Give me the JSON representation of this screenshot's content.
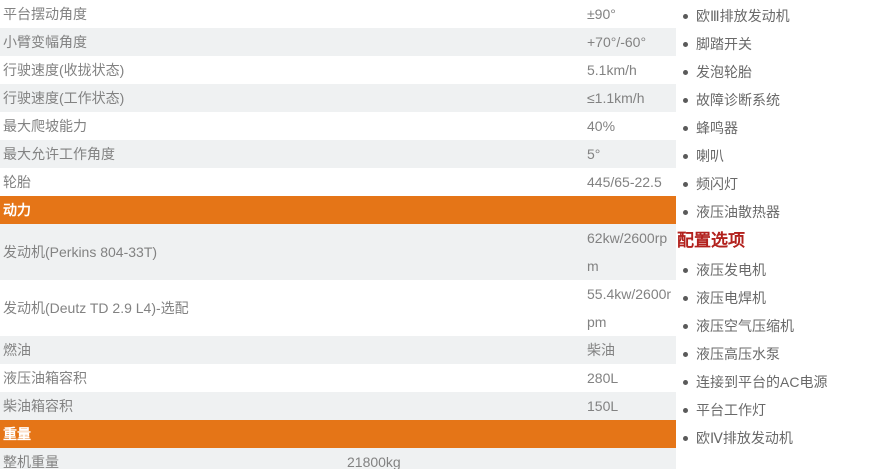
{
  "spec_table": {
    "sections": [
      {
        "header": null,
        "rows": [
          {
            "label": "平台摆动角度",
            "value": "±90°"
          },
          {
            "label": "小臂变幅角度",
            "value": "+70°/-60°"
          },
          {
            "label": "行驶速度(收拢状态)",
            "value": "5.1km/h"
          },
          {
            "label": "行驶速度(工作状态)",
            "value": "≤1.1km/h"
          },
          {
            "label": "最大爬坡能力",
            "value": "40%"
          },
          {
            "label": "最大允许工作角度",
            "value": "5°"
          },
          {
            "label": "轮胎",
            "value": "445/65-22.5"
          }
        ]
      },
      {
        "header": "动力",
        "rows": [
          {
            "label": "发动机(Perkins 804-33T)",
            "value": "62kw/2600rpm"
          },
          {
            "label": "发动机(Deutz TD 2.9 L4)-选配",
            "value": "55.4kw/2600rpm"
          },
          {
            "label": "燃油",
            "value": "柴油"
          },
          {
            "label": "液压油箱容积",
            "value": "280L"
          },
          {
            "label": "柴油箱容积",
            "value": "150L"
          }
        ]
      },
      {
        "header": "重量",
        "rows": [
          {
            "label": "整机重量",
            "value": "21800kg"
          }
        ]
      }
    ]
  },
  "sidebar": {
    "standard_features": [
      "欧Ⅲ排放发动机",
      "脚踏开关",
      "发泡轮胎",
      "故障诊断系统",
      "蜂鸣器",
      "喇叭",
      "频闪灯",
      "液压油散热器"
    ],
    "options_heading": "配置选项",
    "optional_features": [
      "液压发电机",
      "液压电焊机",
      "液压空气压缩机",
      "液压高压水泵",
      "连接到平台的AC电源",
      "平台工作灯",
      "欧Ⅳ排放发动机"
    ]
  },
  "colors": {
    "section_header_bg": "#e57517",
    "section_header_text": "#ffffff",
    "options_heading_text": "#b2211d",
    "row_alt_bg": "#eff1f2",
    "table_text": "#828282",
    "sidebar_text": "#696969"
  }
}
